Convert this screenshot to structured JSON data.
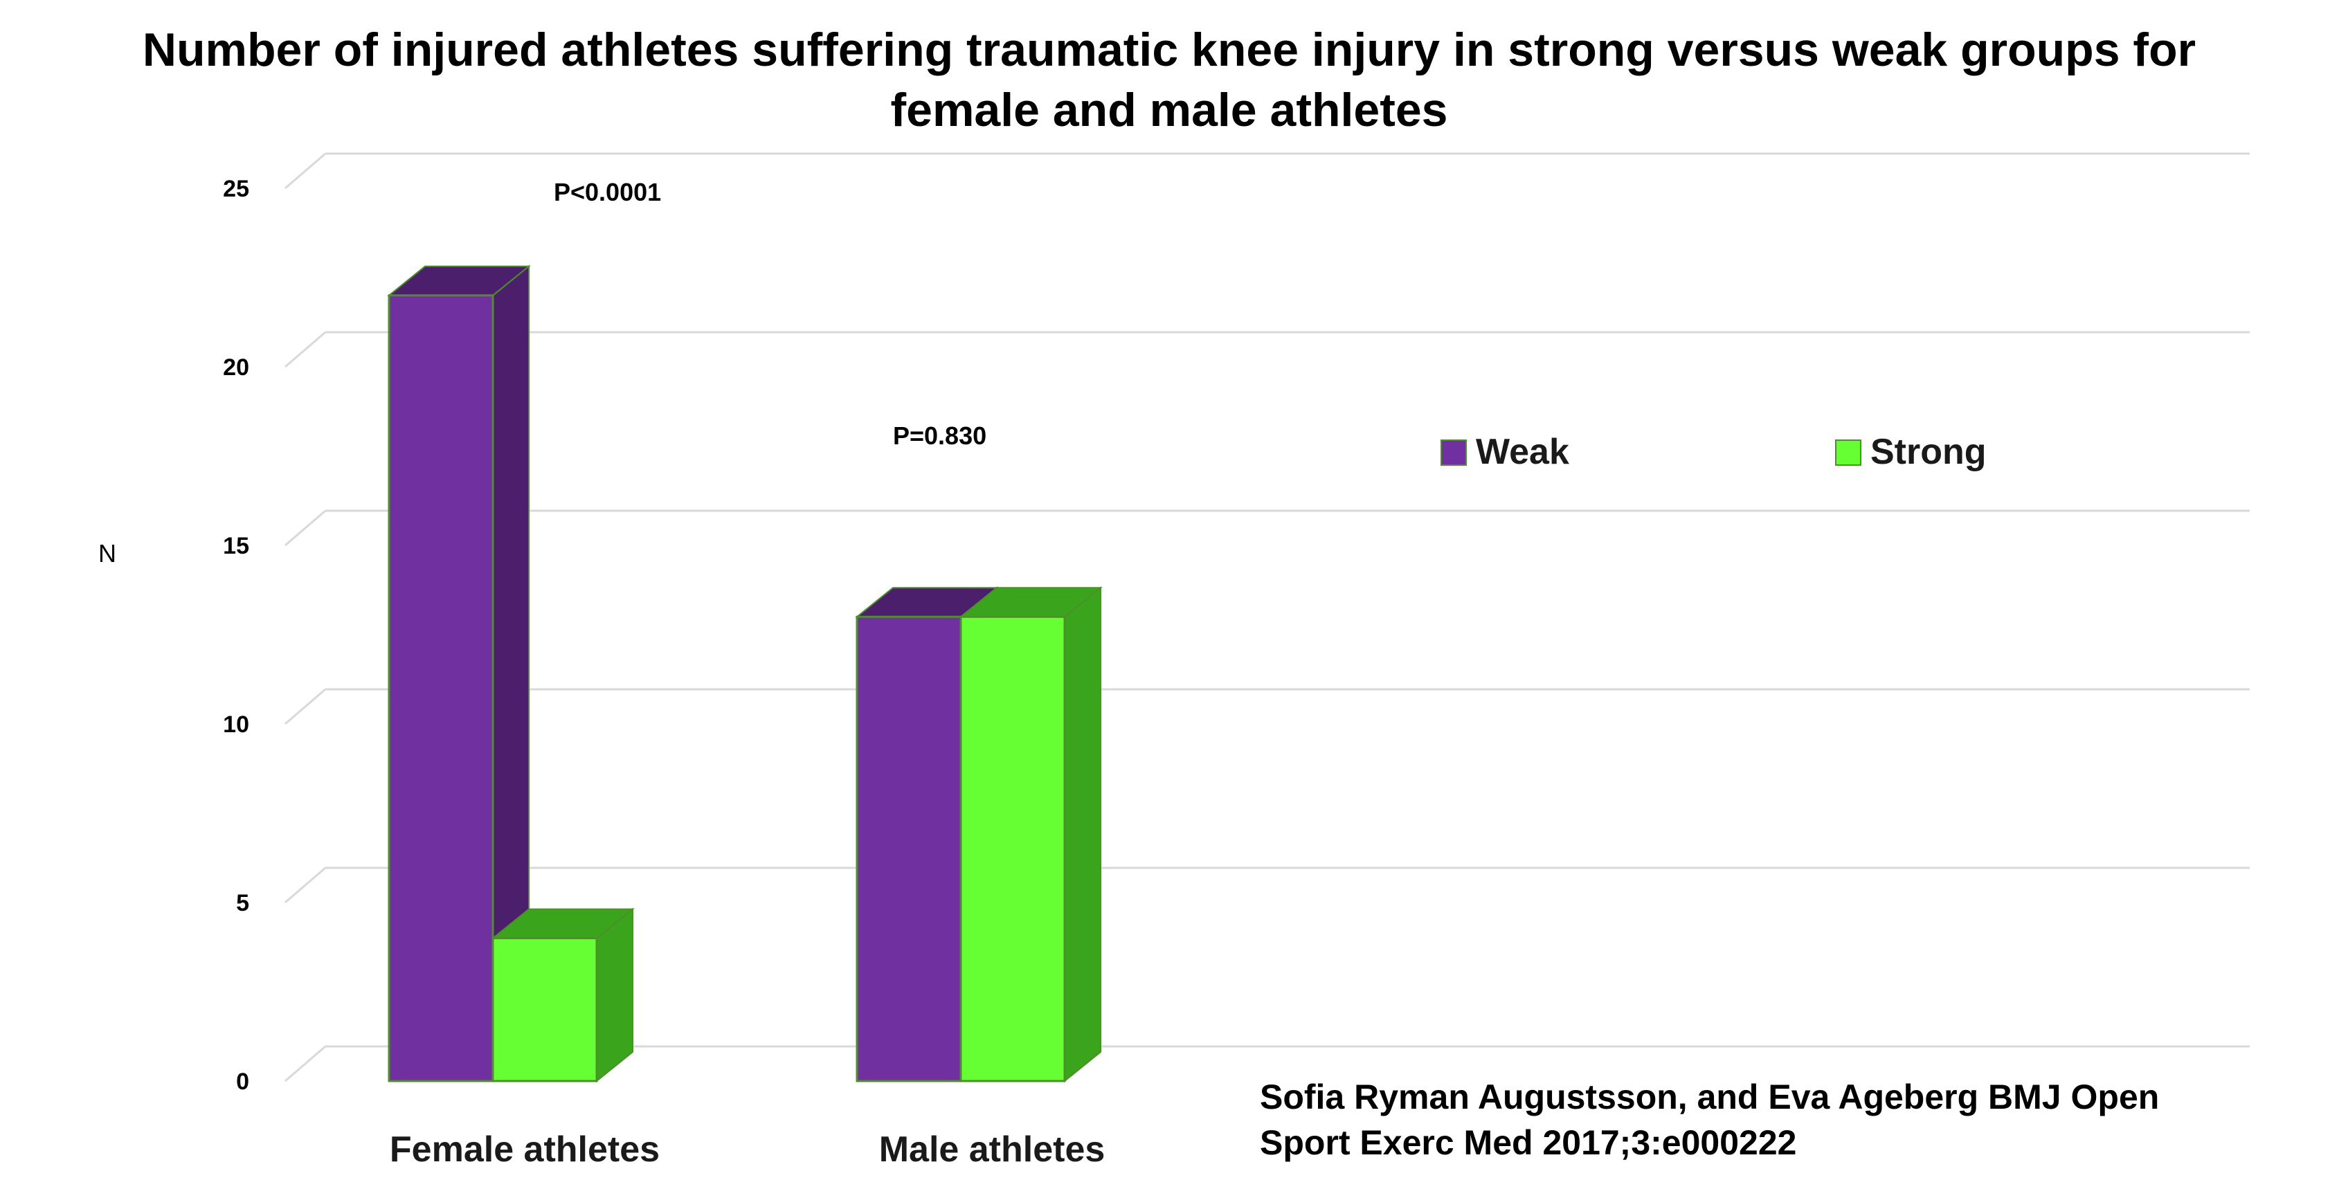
{
  "chart_data": {
    "type": "bar",
    "title_lines": [
      "Number of injured athletes suffering traumatic knee injury in strong versus weak groups for",
      "female and male athletes"
    ],
    "ylabel": "N",
    "xlabel": "",
    "ylim": [
      0,
      25
    ],
    "yticks": [
      0,
      5,
      10,
      15,
      20,
      25
    ],
    "categories": [
      "Female athletes",
      "Male athletes"
    ],
    "series": [
      {
        "name": "Weak",
        "values": [
          22,
          13
        ],
        "color": "#7030a0",
        "side_color": "#4b1f6b"
      },
      {
        "name": "Strong",
        "values": [
          4,
          13
        ],
        "color": "#66ff33",
        "side_color": "#3aa51c"
      }
    ],
    "annotations": [
      "P<0.0001",
      "P=0.830"
    ],
    "legend_position": "top-right",
    "grid": true,
    "style": "3d"
  },
  "citation_lines": [
    "Sofia Ryman Augustsson, and Eva Ageberg BMJ Open",
    "Sport Exerc Med 2017;3:e000222"
  ]
}
